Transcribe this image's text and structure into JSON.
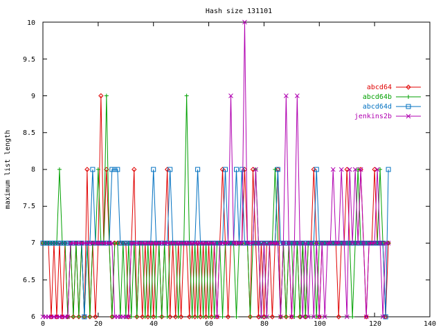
{
  "chart_data": {
    "type": "line",
    "title": "Hash size 131101",
    "xlabel": "",
    "ylabel": "maximum list length",
    "xlim": [
      0,
      140
    ],
    "ylim": [
      6,
      10
    ],
    "x_ticks": [
      "0",
      "20",
      "40",
      "60",
      "80",
      "100",
      "120",
      "140"
    ],
    "y_ticks": [
      "6",
      "6.5",
      "7",
      "7.5",
      "8",
      "8.5",
      "9",
      "9.5",
      "10"
    ],
    "legend_position": "top-right",
    "x": [
      0,
      1,
      2,
      3,
      4,
      5,
      6,
      7,
      8,
      9,
      10,
      11,
      12,
      13,
      14,
      15,
      16,
      17,
      18,
      19,
      20,
      21,
      22,
      23,
      24,
      25,
      26,
      27,
      28,
      29,
      30,
      31,
      32,
      33,
      34,
      35,
      36,
      37,
      38,
      39,
      40,
      41,
      42,
      43,
      44,
      45,
      46,
      47,
      48,
      49,
      50,
      51,
      52,
      53,
      54,
      55,
      56,
      57,
      58,
      59,
      60,
      61,
      62,
      63,
      64,
      65,
      66,
      67,
      68,
      69,
      70,
      71,
      72,
      73,
      74,
      75,
      76,
      77,
      78,
      79,
      80,
      81,
      82,
      83,
      84,
      85,
      86,
      87,
      88,
      89,
      90,
      91,
      92,
      93,
      94,
      95,
      96,
      97,
      98,
      99,
      100,
      101,
      102,
      103,
      104,
      105,
      106,
      107,
      108,
      109,
      110,
      111,
      112,
      113,
      114,
      115,
      116,
      117,
      118,
      119,
      120,
      121,
      122,
      123,
      124,
      125
    ],
    "series": [
      {
        "name": "abcd64",
        "color": "#e00000",
        "marker": "diamond",
        "values": [
          7,
          7,
          7,
          6,
          7,
          6,
          7,
          6,
          7,
          6,
          7,
          6,
          7,
          6,
          7,
          6,
          8,
          6,
          7,
          6,
          7,
          9,
          7,
          8,
          7,
          6,
          7,
          7,
          7,
          7,
          7,
          6,
          7,
          8,
          6,
          7,
          6,
          7,
          6,
          7,
          6,
          7,
          7,
          6,
          7,
          8,
          6,
          7,
          6,
          7,
          6,
          7,
          7,
          6,
          7,
          6,
          7,
          6,
          7,
          6,
          7,
          6,
          7,
          6,
          7,
          8,
          7,
          6,
          7,
          7,
          7,
          7,
          7,
          8,
          7,
          6,
          8,
          7,
          6,
          7,
          6,
          7,
          7,
          6,
          7,
          8,
          6,
          7,
          6,
          7,
          6,
          7,
          7,
          6,
          7,
          6,
          7,
          7,
          8,
          7,
          6,
          7,
          7,
          7,
          7,
          7,
          7,
          6,
          7,
          7,
          8,
          7,
          7,
          7,
          7,
          8,
          7,
          6,
          7,
          7,
          8,
          7,
          7,
          7,
          6,
          7
        ]
      },
      {
        "name": "abcd64b",
        "color": "#00a000",
        "marker": "plus",
        "values": [
          7,
          7,
          7,
          7,
          7,
          7,
          8,
          7,
          7,
          6,
          7,
          6,
          7,
          6,
          7,
          6,
          7,
          6,
          7,
          7,
          8,
          7,
          7,
          9,
          7,
          6,
          7,
          7,
          6,
          7,
          6,
          7,
          6,
          7,
          6,
          7,
          7,
          6,
          7,
          6,
          7,
          6,
          7,
          6,
          7,
          6,
          7,
          7,
          7,
          6,
          7,
          7,
          9,
          7,
          6,
          7,
          6,
          7,
          6,
          7,
          6,
          7,
          6,
          7,
          7,
          6,
          7,
          7,
          7,
          7,
          6,
          7,
          7,
          7,
          7,
          6,
          7,
          8,
          7,
          6,
          7,
          6,
          7,
          7,
          8,
          7,
          6,
          7,
          6,
          7,
          7,
          6,
          7,
          6,
          7,
          6,
          7,
          7,
          7,
          6,
          7,
          7,
          7,
          7,
          7,
          7,
          7,
          7,
          7,
          7,
          7,
          7,
          6,
          7,
          8,
          7,
          7,
          7,
          7,
          7,
          7,
          7,
          8,
          7,
          7,
          7
        ]
      },
      {
        "name": "abcd64d",
        "color": "#0070c0",
        "marker": "square",
        "values": [
          7,
          7,
          7,
          7,
          7,
          7,
          7,
          7,
          7,
          7,
          7,
          7,
          7,
          7,
          7,
          6,
          7,
          7,
          8,
          7,
          7,
          7,
          7,
          7,
          7,
          8,
          8,
          8,
          7,
          7,
          7,
          7,
          7,
          7,
          7,
          7,
          7,
          7,
          7,
          7,
          8,
          7,
          7,
          7,
          7,
          7,
          8,
          7,
          7,
          7,
          7,
          7,
          7,
          7,
          7,
          7,
          8,
          7,
          7,
          7,
          7,
          7,
          7,
          7,
          7,
          7,
          8,
          7,
          7,
          7,
          8,
          7,
          8,
          7,
          7,
          7,
          7,
          7,
          7,
          7,
          7,
          7,
          7,
          7,
          7,
          8,
          7,
          7,
          7,
          7,
          7,
          7,
          7,
          7,
          7,
          7,
          7,
          7,
          7,
          8,
          7,
          7,
          7,
          7,
          7,
          7,
          7,
          7,
          7,
          7,
          7,
          7,
          7,
          7,
          7,
          7,
          7,
          7,
          7,
          7,
          7,
          7,
          7,
          7,
          6,
          8
        ]
      },
      {
        "name": "jenkins2b",
        "color": "#b000b0",
        "marker": "cross",
        "values": [
          6,
          6,
          6,
          6,
          6,
          6,
          6,
          6,
          6,
          6,
          7,
          7,
          7,
          7,
          7,
          7,
          7,
          7,
          7,
          7,
          7,
          7,
          7,
          7,
          7,
          7,
          6,
          6,
          6,
          6,
          6,
          6,
          7,
          7,
          7,
          7,
          7,
          7,
          7,
          7,
          7,
          7,
          7,
          7,
          7,
          7,
          7,
          7,
          7,
          7,
          7,
          7,
          7,
          7,
          7,
          7,
          7,
          7,
          7,
          7,
          7,
          7,
          7,
          6,
          7,
          7,
          7,
          7,
          9,
          7,
          7,
          7,
          7,
          10,
          7,
          7,
          7,
          8,
          7,
          6,
          7,
          6,
          7,
          7,
          7,
          7,
          6,
          7,
          9,
          7,
          6,
          7,
          9,
          7,
          6,
          7,
          6,
          7,
          6,
          7,
          6,
          7,
          6,
          7,
          7,
          8,
          7,
          7,
          8,
          7,
          6,
          8,
          7,
          8,
          7,
          8,
          7,
          6,
          7,
          7,
          7,
          8,
          7,
          6,
          7,
          7
        ]
      }
    ]
  }
}
